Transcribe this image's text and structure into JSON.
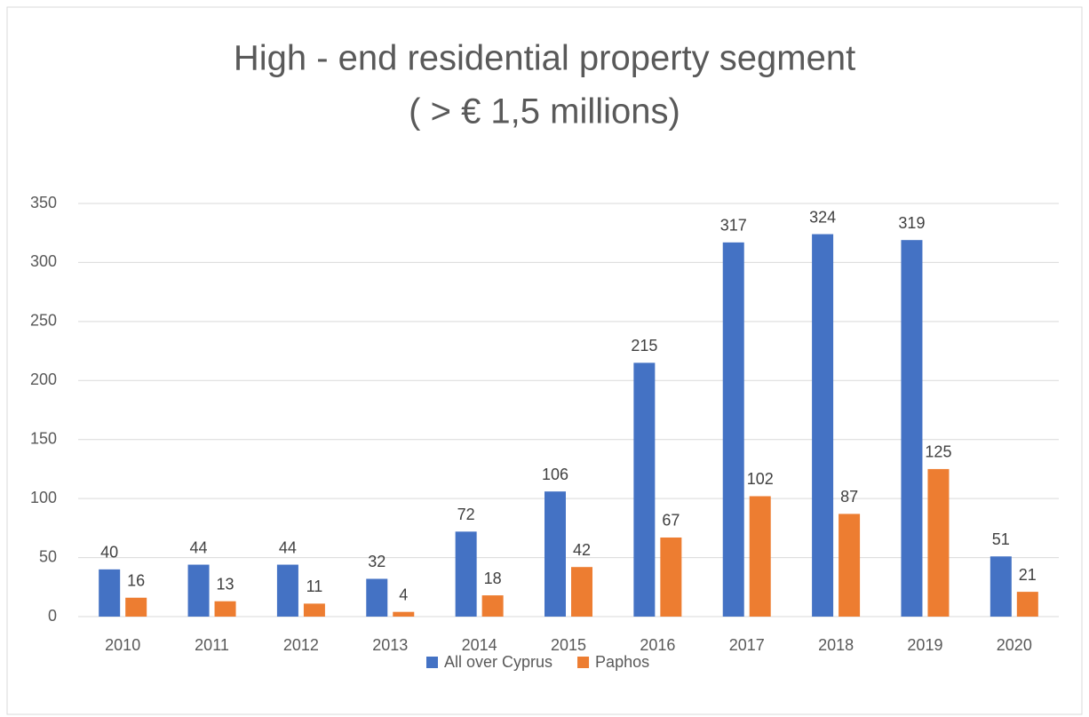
{
  "chart_data": {
    "type": "bar",
    "title": [
      "High - end residential property segment",
      "( > € 1,5 millions)"
    ],
    "categories": [
      "2010",
      "2011",
      "2012",
      "2013",
      "2014",
      "2015",
      "2016",
      "2017",
      "2018",
      "2019",
      "2020"
    ],
    "series": [
      {
        "name": "All over Cyprus",
        "color": "#4472c4",
        "values": [
          40,
          44,
          44,
          32,
          72,
          106,
          215,
          317,
          324,
          319,
          51
        ]
      },
      {
        "name": "Paphos",
        "color": "#ed7d31",
        "values": [
          16,
          13,
          11,
          4,
          18,
          42,
          67,
          102,
          87,
          125,
          21
        ]
      }
    ],
    "ylim": [
      0,
      350
    ],
    "yticks": [
      0,
      50,
      100,
      150,
      200,
      250,
      300,
      350
    ],
    "grid": true,
    "legend": "bottom"
  }
}
